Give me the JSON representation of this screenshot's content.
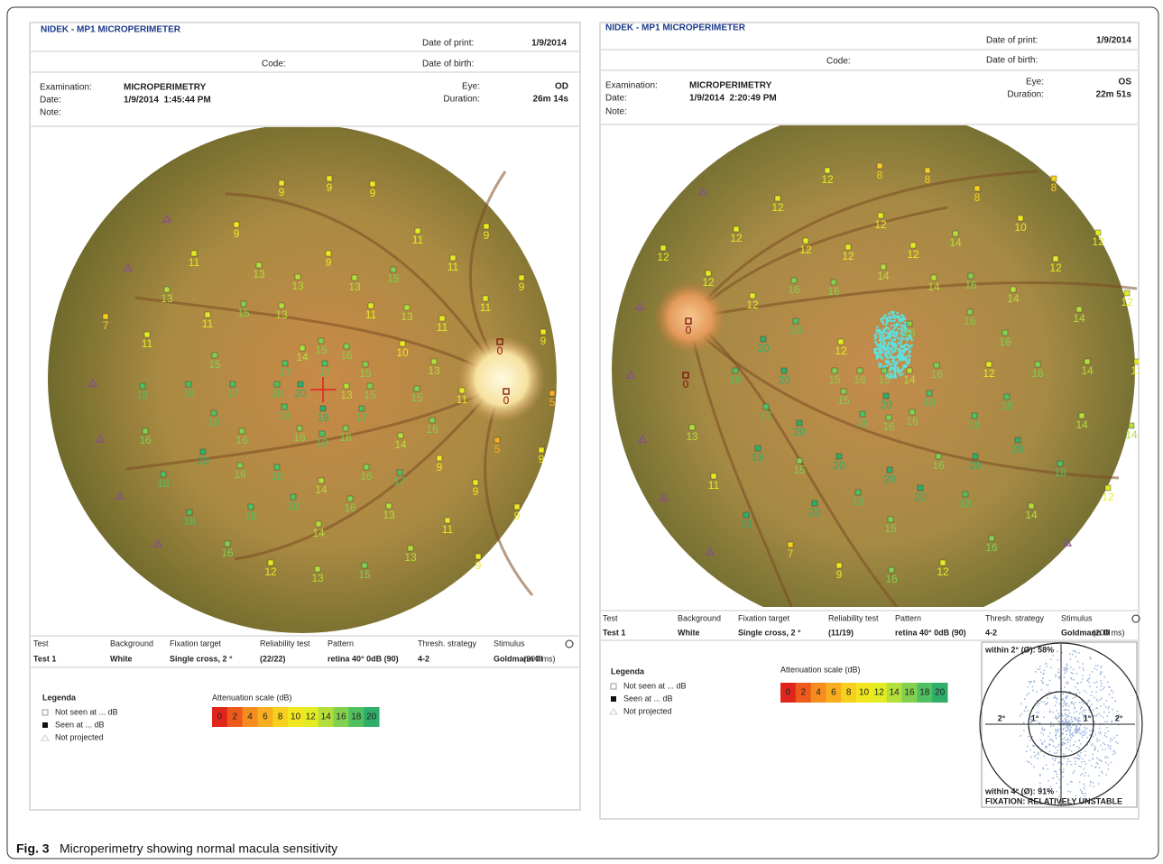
{
  "reports": [
    {
      "title": "NIDEK - MP1 MICROPERIMETER",
      "date_of_print_label": "Date of print:",
      "date_of_print": "1/9/2014",
      "code_label": "Code:",
      "date_of_birth_label": "Date of birth:",
      "examination_label": "Examination:",
      "examination": "MICROPERIMETRY",
      "date_label": "Date:",
      "date": "1/9/2014  1:45:44 PM",
      "note_label": "Note:",
      "eye_label": "Eye:",
      "eye": "OD",
      "duration_label": "Duration:",
      "duration": "26m 14s",
      "info_headers": [
        "Test",
        "Background",
        "Fixation target",
        "Reliability test",
        "Pattern",
        "Thresh. strategy",
        "Stimulus"
      ],
      "info_values": [
        "Test 1",
        "White",
        "Single cross, 2 °",
        "(22/22)",
        "retina 40° 0dB (90)",
        "4-2",
        "Goldmann III"
      ],
      "stimulus_duration": "(200 ms)",
      "legend_title": "Legenda",
      "legend_items": [
        "Not seen at ... dB",
        "Seen at ... dB",
        "Not projected"
      ],
      "scale_title": "Attenuation scale (dB)",
      "scale": [
        0,
        2,
        4,
        6,
        8,
        10,
        12,
        14,
        16,
        18,
        20
      ],
      "points": [
        9,
        9,
        9,
        9,
        11,
        9,
        11,
        13,
        9,
        11,
        13,
        13,
        13,
        15,
        9,
        15,
        13,
        11,
        13,
        11,
        7,
        11,
        11,
        11,
        15,
        16,
        10,
        9,
        15,
        14,
        17,
        17,
        15,
        13,
        18,
        18,
        17,
        18,
        20,
        13,
        15,
        15,
        11,
        5,
        18,
        18,
        19,
        17,
        16,
        16,
        16,
        16,
        18,
        16,
        14,
        5,
        20,
        9,
        9,
        18,
        16,
        18,
        14,
        16,
        17,
        9,
        18,
        18,
        18,
        16,
        13,
        11,
        9,
        16,
        14,
        13,
        9,
        12,
        13,
        15,
        0,
        0
      ]
    },
    {
      "title": "NIDEK - MP1 MICROPERIMETER",
      "date_of_print_label": "Date of print:",
      "date_of_print": "1/9/2014",
      "code_label": "Code:",
      "date_of_birth_label": "Date of birth:",
      "examination_label": "Examination:",
      "examination": "MICROPERIMETRY",
      "date_label": "Date:",
      "date": "1/9/2014  2:20:49 PM",
      "note_label": "Note:",
      "eye_label": "Eye:",
      "eye": "OS",
      "duration_label": "Duration:",
      "duration": "22m 51s",
      "info_headers": [
        "Test",
        "Background",
        "Fixation target",
        "Reliability test",
        "Pattern",
        "Thresh. strategy",
        "Stimulus"
      ],
      "info_values": [
        "Test 1",
        "White",
        "Single cross, 2 °",
        "(11/19)",
        "retina 40° 0dB (90)",
        "4-2",
        "Goldmann III"
      ],
      "stimulus_duration": "(200 ms)",
      "legend_title": "Legenda",
      "legend_items": [
        "Not seen at ... dB",
        "Seen at ... dB",
        "Not projected"
      ],
      "scale_title": "Attenuation scale (dB)",
      "scale": [
        0,
        2,
        4,
        6,
        8,
        10,
        12,
        14,
        16,
        18,
        20
      ],
      "points": [
        12,
        8,
        8,
        8,
        8,
        12,
        10,
        12,
        14,
        12,
        12,
        12,
        12,
        12,
        12,
        12,
        12,
        14,
        14,
        16,
        16,
        16,
        14,
        12,
        12,
        18,
        16,
        14,
        0,
        20,
        12,
        16,
        16,
        18,
        20,
        15,
        16,
        15,
        14,
        16,
        12,
        16,
        14,
        12,
        20,
        18,
        18,
        17,
        20,
        15,
        18,
        16,
        16,
        18,
        14,
        14,
        13,
        20,
        19,
        15,
        20,
        20,
        16,
        20,
        18,
        11,
        18,
        20,
        18,
        12,
        20,
        15,
        14,
        19,
        16,
        7,
        9,
        16,
        12,
        0
      ],
      "fixation": {
        "within_2": "within 2° (Ø): 58%",
        "within_4": "within 4° (Ø): 91%",
        "status": "FIXATION: RELATIVELY UNSTABLE",
        "rings": [
          "2°",
          "1°",
          "1°",
          "2°"
        ]
      }
    }
  ],
  "scale_colors": [
    "#e0261c",
    "#ee5a1c",
    "#f58c1e",
    "#f8ae1e",
    "#f7cf1e",
    "#f2e61e",
    "#e3ec22",
    "#b4de3a",
    "#82d04e",
    "#50c060",
    "#2fae6a"
  ],
  "caption": {
    "label": "Fig. 3",
    "text": "Microperimetry showing normal macula sensitivity"
  }
}
